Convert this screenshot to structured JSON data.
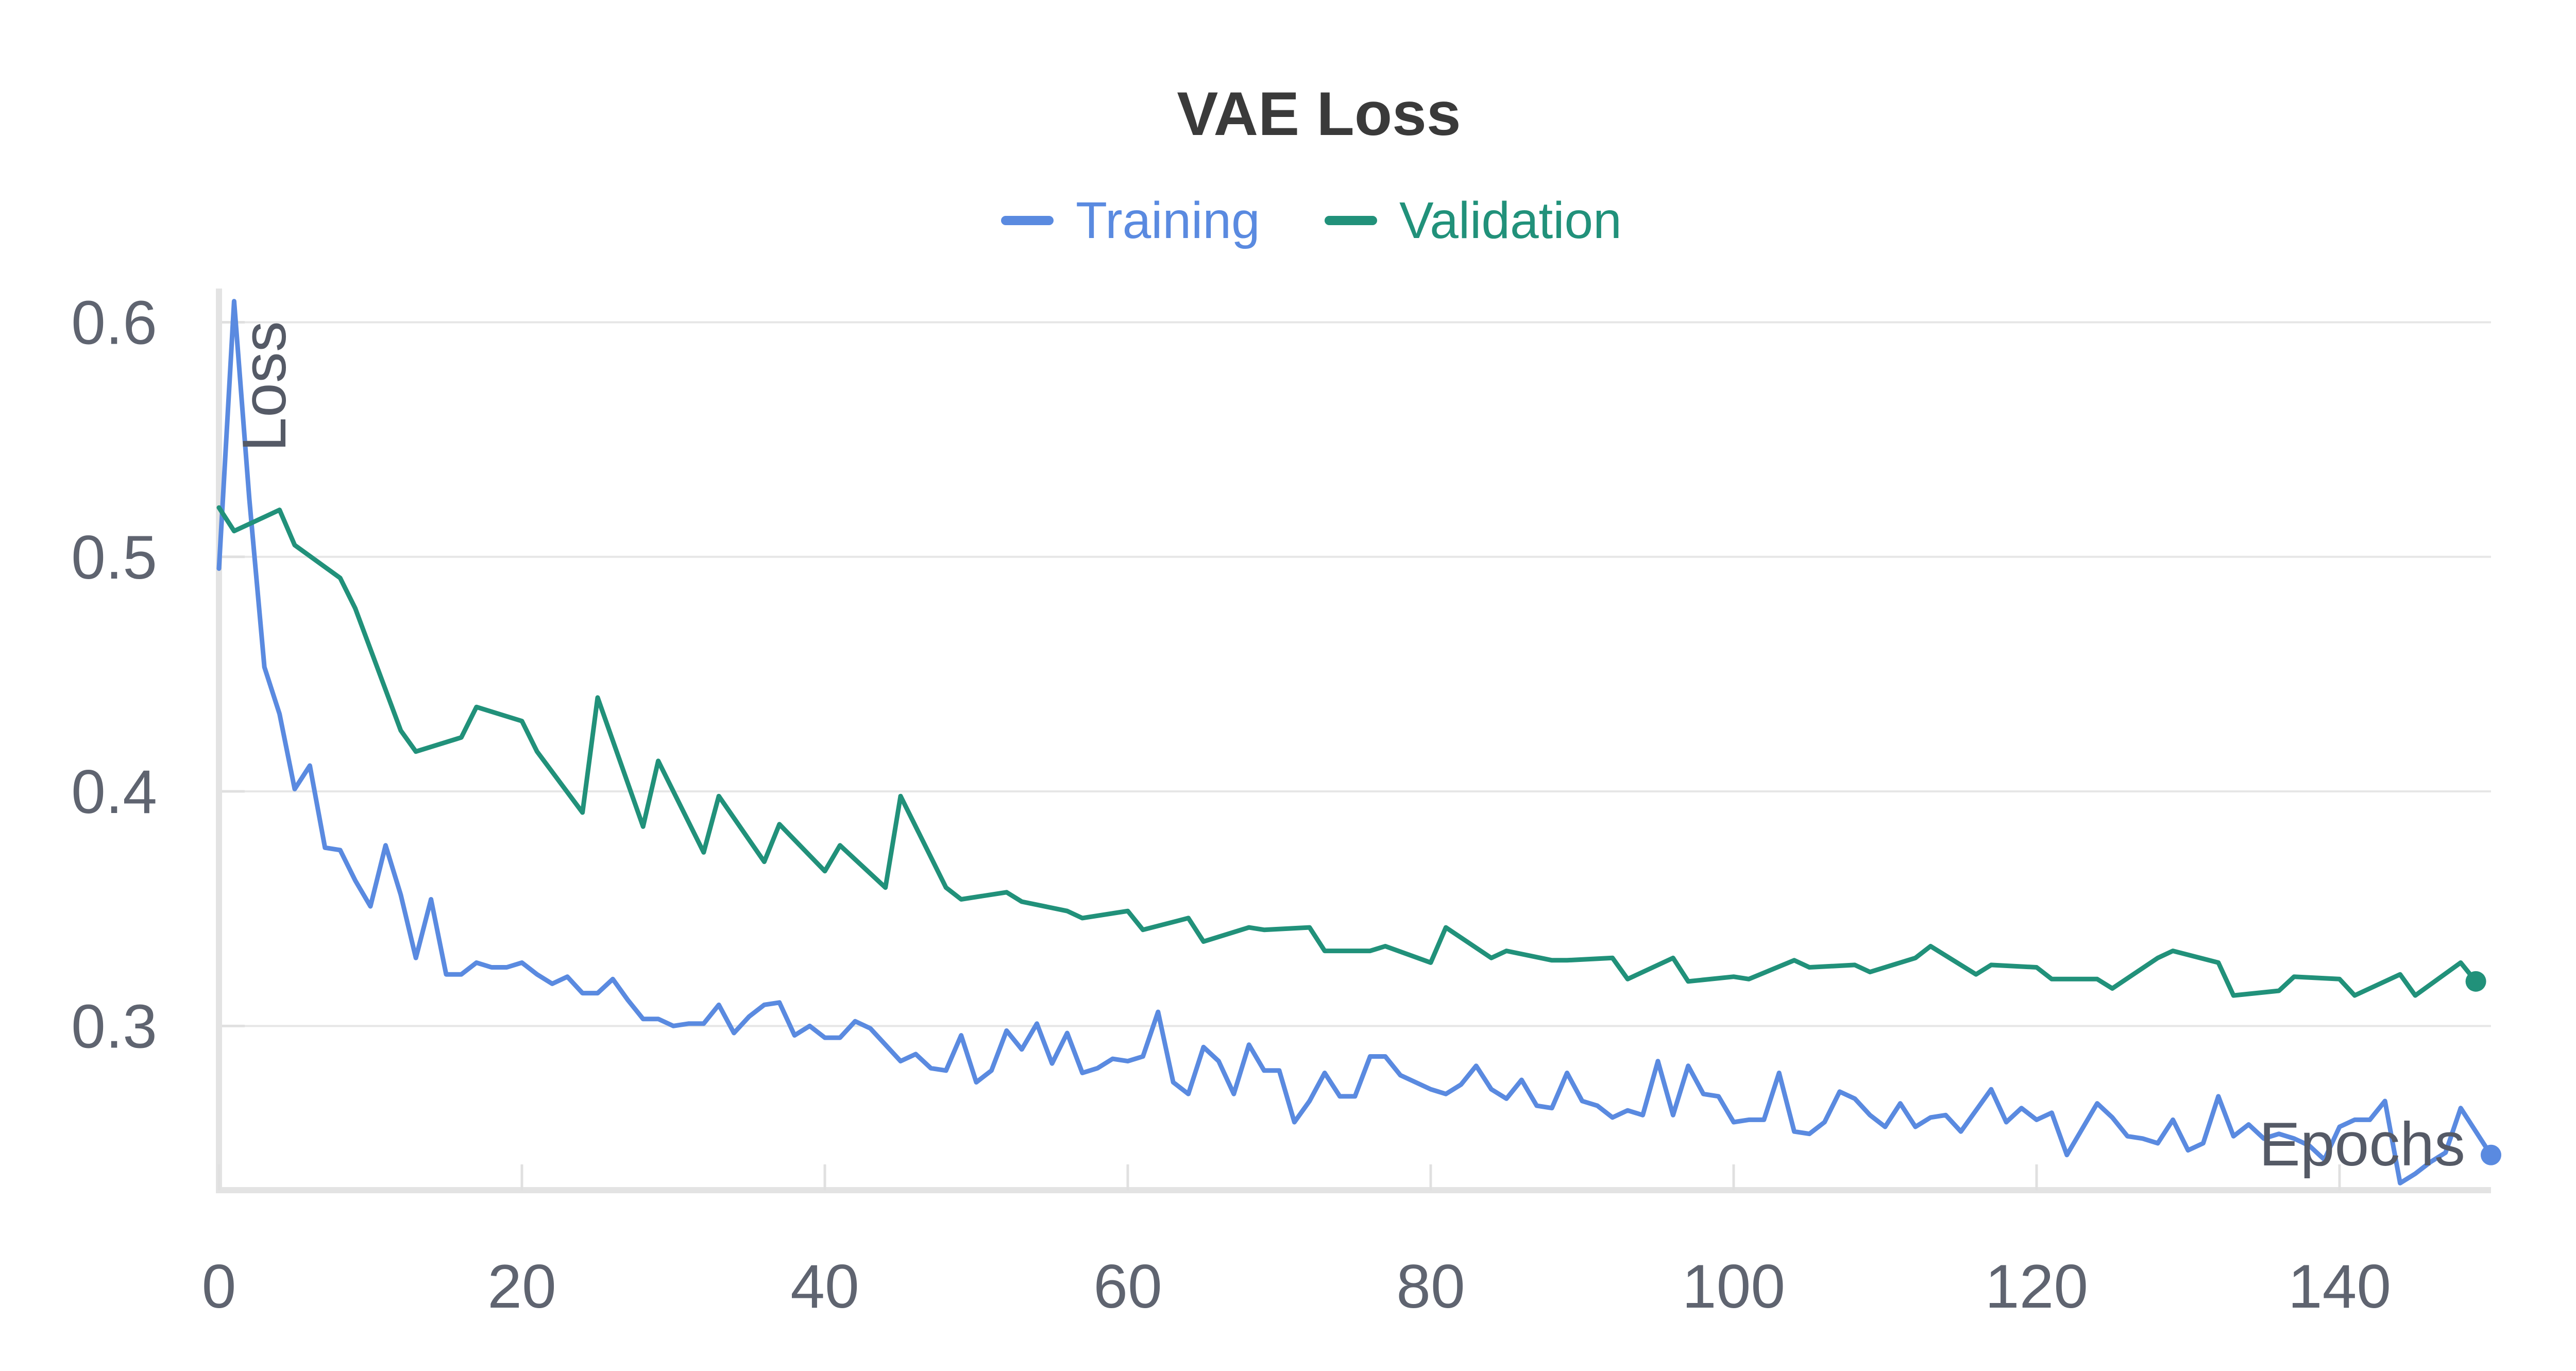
{
  "chart_data": {
    "type": "line",
    "title": "VAE Loss",
    "xlabel": "Epochs",
    "ylabel": "Loss",
    "xlim": [
      0,
      150
    ],
    "ylim": [
      0.23,
      0.61
    ],
    "x_ticks": [
      0,
      20,
      40,
      60,
      80,
      100,
      120,
      140
    ],
    "y_ticks": [
      0.3,
      0.4,
      0.5,
      0.6
    ],
    "grid": true,
    "legend_position": "top-center",
    "series": [
      {
        "name": "Training",
        "color": "#5a8ae0",
        "x": [
          0,
          1,
          2,
          3,
          4,
          5,
          6,
          7,
          8,
          9,
          10,
          11,
          12,
          13,
          14,
          15,
          16,
          17,
          18,
          19,
          20,
          21,
          22,
          23,
          24,
          25,
          26,
          27,
          28,
          29,
          30,
          31,
          32,
          33,
          34,
          35,
          36,
          37,
          38,
          39,
          40,
          41,
          42,
          43,
          44,
          45,
          46,
          47,
          48,
          49,
          50,
          51,
          52,
          53,
          54,
          55,
          56,
          57,
          58,
          59,
          60,
          61,
          62,
          63,
          64,
          65,
          66,
          67,
          68,
          69,
          70,
          71,
          72,
          73,
          74,
          75,
          76,
          77,
          78,
          79,
          80,
          81,
          82,
          83,
          84,
          85,
          86,
          87,
          88,
          89,
          90,
          91,
          92,
          93,
          94,
          95,
          96,
          97,
          98,
          99,
          100,
          101,
          102,
          103,
          104,
          105,
          106,
          107,
          108,
          109,
          110,
          111,
          112,
          113,
          114,
          115,
          116,
          117,
          118,
          119,
          120,
          121,
          122,
          123,
          124,
          125,
          126,
          127,
          128,
          129,
          130,
          131,
          132,
          133,
          134,
          135,
          136,
          137,
          138,
          139,
          140,
          141,
          142,
          143,
          144,
          145,
          146,
          147,
          148,
          149,
          150
        ],
        "values": [
          0.495,
          0.609,
          0.525,
          0.453,
          0.433,
          0.401,
          0.411,
          0.376,
          0.375,
          0.362,
          0.351,
          0.377,
          0.356,
          0.329,
          0.354,
          0.322,
          0.322,
          0.327,
          0.325,
          0.325,
          0.327,
          0.322,
          0.318,
          0.321,
          0.314,
          0.314,
          0.32,
          0.311,
          0.303,
          0.303,
          0.3,
          0.301,
          0.301,
          0.309,
          0.297,
          0.304,
          0.309,
          0.31,
          0.296,
          0.3,
          0.295,
          0.295,
          0.302,
          0.299,
          0.292,
          0.285,
          0.288,
          0.282,
          0.281,
          0.296,
          0.276,
          0.281,
          0.298,
          0.29,
          0.301,
          0.284,
          0.297,
          0.28,
          0.282,
          0.286,
          0.285,
          0.287,
          0.306,
          0.276,
          0.271,
          0.291,
          0.285,
          0.271,
          0.292,
          0.281,
          0.281,
          0.259,
          0.268,
          0.28,
          0.27,
          0.27,
          0.287,
          0.287,
          0.279,
          0.276,
          0.273,
          0.271,
          0.275,
          0.283,
          0.273,
          0.269,
          0.277,
          0.266,
          0.265,
          0.28,
          0.268,
          0.266,
          0.261,
          0.264,
          0.262,
          0.285,
          0.262,
          0.283,
          0.271,
          0.27,
          0.259,
          0.26,
          0.26,
          0.28,
          0.255,
          0.254,
          0.259,
          0.272,
          0.269,
          0.262,
          0.257,
          0.267,
          0.257,
          0.261,
          0.262,
          0.255,
          0.264,
          0.273,
          0.259,
          0.265,
          0.26,
          0.263,
          0.245,
          0.256,
          0.267,
          0.261,
          0.253,
          0.252,
          0.25,
          0.26,
          0.247,
          0.25,
          0.27,
          0.253,
          0.258,
          0.252,
          0.254,
          0.252,
          0.249,
          0.243,
          0.257,
          0.26,
          0.26,
          0.268,
          0.233,
          0.237,
          0.242,
          0.246,
          0.265,
          0.255,
          0.245
        ]
      },
      {
        "name": "Validation",
        "color": "#21917a",
        "x": [
          0,
          1,
          4,
          5,
          8,
          9,
          12,
          13,
          16,
          17,
          20,
          21,
          24,
          25,
          28,
          29,
          32,
          33,
          36,
          37,
          40,
          41,
          44,
          45,
          48,
          49,
          52,
          53,
          56,
          57,
          60,
          61,
          64,
          65,
          68,
          69,
          72,
          73,
          76,
          77,
          80,
          81,
          84,
          85,
          88,
          89,
          92,
          93,
          96,
          97,
          100,
          101,
          104,
          105,
          108,
          109,
          112,
          113,
          116,
          117,
          120,
          121,
          124,
          125,
          128,
          129,
          132,
          133,
          136,
          137,
          140,
          141,
          144,
          145,
          148,
          149
        ],
        "values": [
          0.521,
          0.511,
          0.52,
          0.505,
          0.491,
          0.478,
          0.426,
          0.417,
          0.423,
          0.436,
          0.43,
          0.417,
          0.391,
          0.44,
          0.385,
          0.413,
          0.374,
          0.398,
          0.37,
          0.386,
          0.366,
          0.377,
          0.359,
          0.398,
          0.359,
          0.354,
          0.357,
          0.353,
          0.349,
          0.346,
          0.349,
          0.341,
          0.346,
          0.336,
          0.342,
          0.341,
          0.342,
          0.332,
          0.332,
          0.334,
          0.327,
          0.342,
          0.329,
          0.332,
          0.328,
          0.328,
          0.329,
          0.32,
          0.329,
          0.319,
          0.321,
          0.32,
          0.328,
          0.325,
          0.326,
          0.323,
          0.329,
          0.334,
          0.322,
          0.326,
          0.325,
          0.32,
          0.32,
          0.316,
          0.329,
          0.332,
          0.327,
          0.313,
          0.315,
          0.321,
          0.32,
          0.313,
          0.322,
          0.313,
          0.327,
          0.319
        ]
      }
    ]
  }
}
